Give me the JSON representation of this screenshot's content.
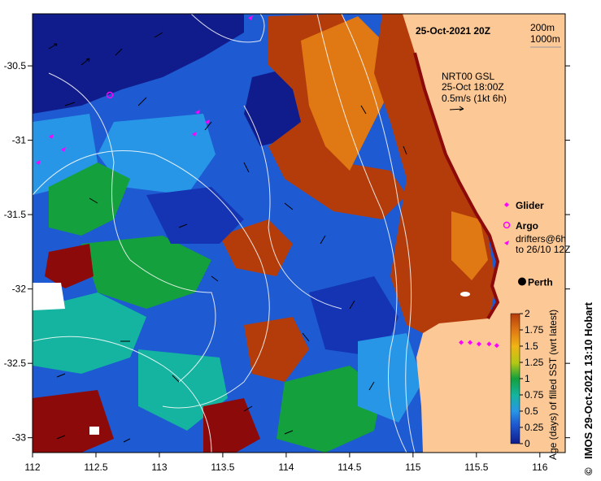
{
  "map": {
    "title_date": "25-Oct-2021 20Z",
    "contour_legend": [
      "200m",
      "1000m"
    ],
    "current_info": [
      "NRT00 GSL",
      "25-Oct 18:00Z",
      "0.5m/s (1kt 6h)"
    ],
    "place_label": "Perth",
    "credit": "IMOS 29-Oct-2021 13:10 Hobart",
    "copyright_symbol": "©"
  },
  "legend": {
    "glider": "Glider",
    "argo": "Argo",
    "drifters_line1": "drifters@6h",
    "drifters_line2": "to 26/10 12Z"
  },
  "axes": {
    "x_ticks": [
      "112",
      "112.5",
      "113",
      "113.5",
      "114",
      "114.5",
      "115",
      "115.5",
      "116"
    ],
    "y_ticks": [
      "-30.5",
      "-31",
      "-31.5",
      "-32",
      "-32.5",
      "-33"
    ]
  },
  "colorbar": {
    "ticks": [
      "2",
      "1.75",
      "1.5",
      "1.25",
      "1",
      "0.75",
      "0.5",
      "0.25",
      "0"
    ],
    "label": "Age (days) of filled SST (wrt latest)",
    "range": [
      0,
      2
    ]
  },
  "colors": {
    "land": "#fcc896",
    "deep_blue": "#101c8c",
    "dark_blue": "#1434b4",
    "blue": "#1e5ad2",
    "light_blue": "#2896e6",
    "teal": "#14b4a0",
    "green": "#14a03c",
    "orange": "#e07814",
    "rust": "#b43c0a",
    "dark_red": "#8c0a0a",
    "marker_magenta": "#ff00ff"
  },
  "markers": {
    "perth": [
      115.86,
      -31.95
    ],
    "glider_track": [
      [
        115.38,
        -32.36
      ],
      [
        115.45,
        -32.36
      ],
      [
        115.52,
        -32.37
      ],
      [
        115.6,
        -32.37
      ],
      [
        115.66,
        -32.38
      ]
    ]
  }
}
